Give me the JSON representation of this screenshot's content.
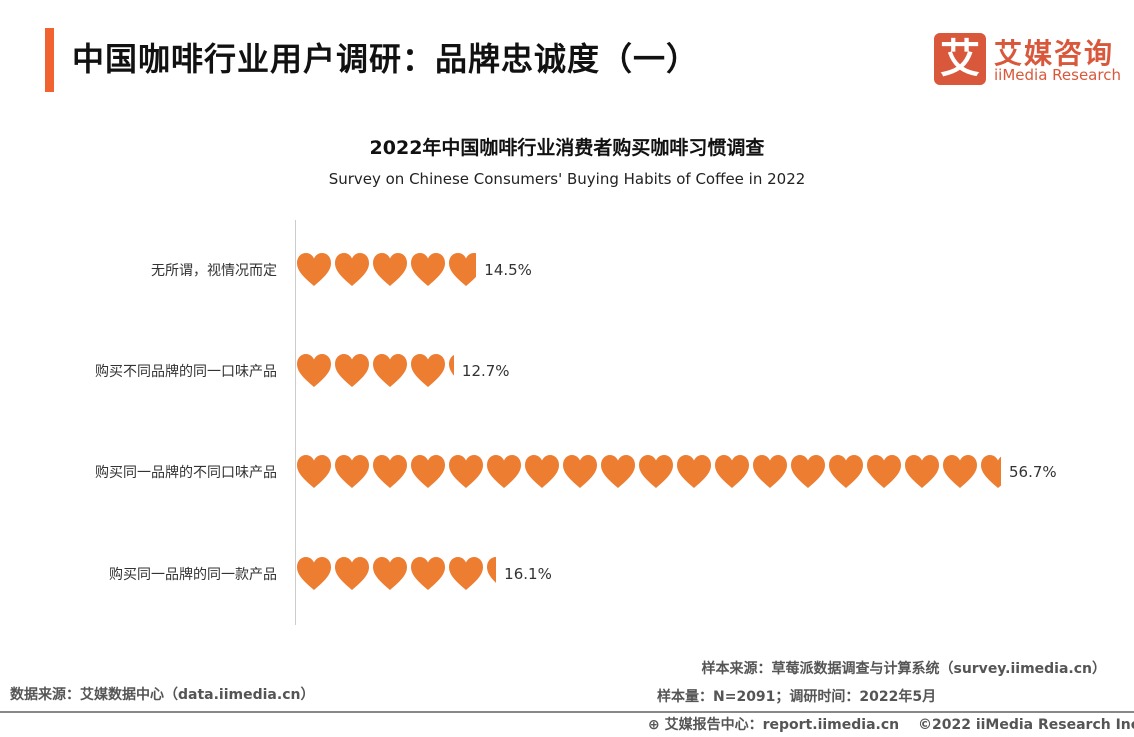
{
  "header": {
    "title": "中国咖啡行业用户调研：品牌忠诚度（一）",
    "accent_color": "#F0622F"
  },
  "logo": {
    "mark": "艾",
    "name_cn": "艾媒咨询",
    "name_en": "iiMedia Research",
    "color": "#D9583B"
  },
  "chart_data": {
    "type": "bar",
    "title": "2022年中国咖啡行业消费者购买咖啡习惯调查",
    "subtitle": "Survey on Chinese Consumers' Buying Habits of Coffee in 2022",
    "categories": [
      "无所谓，视情况而定",
      "购买不同品牌的同一口味产品",
      "购买同一品牌的不同口味产品",
      "购买同一品牌的同一款产品"
    ],
    "values": [
      14.5,
      12.7,
      56.7,
      16.1
    ],
    "labels": [
      "14.5%",
      "12.7%",
      "56.7%",
      "16.1%"
    ],
    "unit": "%",
    "mark": "heart-pictogram",
    "color": "#ED7D31",
    "orientation": "horizontal"
  },
  "footer": {
    "data_source": "数据来源：艾媒数据中心（data.iimedia.cn）",
    "sample_source": "样本来源：草莓派数据调查与计算系统（survey.iimedia.cn）",
    "sample_size": "样本量：N=2091；调研时间：2022年5月",
    "report": "艾媒报告中心：report.iimedia.cn",
    "copyright": "©2022  iiMedia Research  Inc"
  }
}
